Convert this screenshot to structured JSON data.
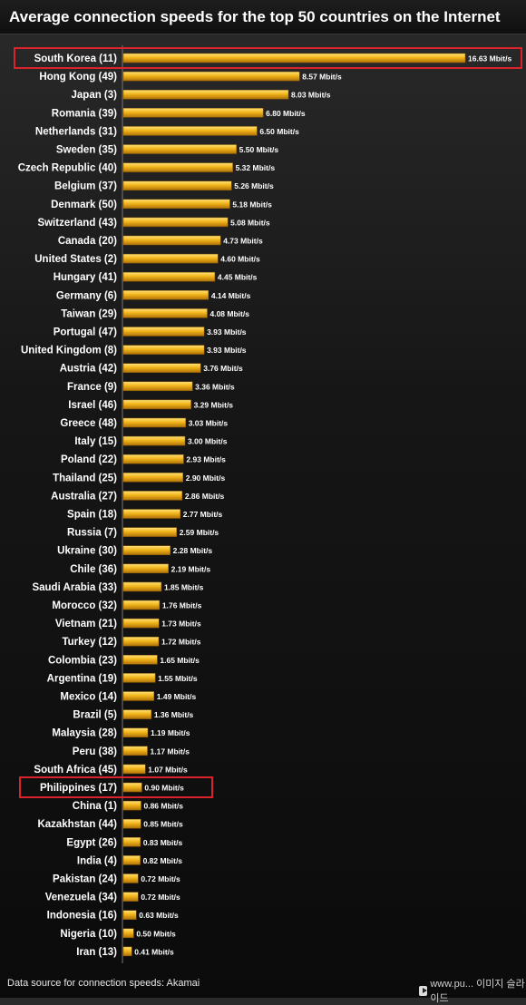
{
  "title": "Average connection speeds for the top 50 countries on the Internet",
  "footer": {
    "source": "Data source for connection speeds: Akamai",
    "watermark": "www.pu... 이미지 슬라이드"
  },
  "colors": {
    "bar_light": "#ffd75a",
    "bar_mid": "#f2b51a",
    "bar_dark": "#b87a08",
    "highlight_box": "#d9232d",
    "background": "#111111"
  },
  "chart_data": {
    "type": "bar",
    "orientation": "horizontal",
    "title": "Average connection speeds for the top 50 countries on the Internet",
    "xlabel": "",
    "ylabel": "",
    "unit": "Mbit/s",
    "xlim": [
      0,
      16.63
    ],
    "grid": false,
    "highlighted": [
      "South Korea (11)",
      "Philippines (17)"
    ],
    "categories": [
      "South Korea (11)",
      "Hong Kong (49)",
      "Japan (3)",
      "Romania (39)",
      "Netherlands (31)",
      "Sweden (35)",
      "Czech Republic (40)",
      "Belgium (37)",
      "Denmark (50)",
      "Switzerland (43)",
      "Canada (20)",
      "United States (2)",
      "Hungary (41)",
      "Germany (6)",
      "Taiwan (29)",
      "Portugal (47)",
      "United Kingdom (8)",
      "Austria (42)",
      "France (9)",
      "Israel (46)",
      "Greece (48)",
      "Italy (15)",
      "Poland (22)",
      "Thailand (25)",
      "Australia (27)",
      "Spain (18)",
      "Russia (7)",
      "Ukraine (30)",
      "Chile (36)",
      "Saudi Arabia (33)",
      "Morocco (32)",
      "Vietnam (21)",
      "Turkey (12)",
      "Colombia (23)",
      "Argentina (19)",
      "Mexico (14)",
      "Brazil (5)",
      "Malaysia (28)",
      "Peru (38)",
      "South Africa (45)",
      "Philippines (17)",
      "China (1)",
      "Kazakhstan (44)",
      "Egypt (26)",
      "India (4)",
      "Pakistan (24)",
      "Venezuela (34)",
      "Indonesia (16)",
      "Nigeria (10)",
      "Iran (13)"
    ],
    "values": [
      16.63,
      8.57,
      8.03,
      6.8,
      6.5,
      5.5,
      5.32,
      5.26,
      5.18,
      5.08,
      4.73,
      4.6,
      4.45,
      4.14,
      4.08,
      3.93,
      3.93,
      3.76,
      3.36,
      3.29,
      3.03,
      3.0,
      2.93,
      2.9,
      2.86,
      2.77,
      2.59,
      2.28,
      2.19,
      1.85,
      1.76,
      1.73,
      1.72,
      1.65,
      1.55,
      1.49,
      1.36,
      1.19,
      1.17,
      1.07,
      0.9,
      0.86,
      0.85,
      0.83,
      0.82,
      0.72,
      0.72,
      0.63,
      0.5,
      0.41
    ],
    "value_labels": [
      "16.63 Mbit/s",
      "8.57 Mbit/s",
      "8.03 Mbit/s",
      "6.80 Mbit/s",
      "6.50 Mbit/s",
      "5.50 Mbit/s",
      "5.32 Mbit/s",
      "5.26 Mbit/s",
      "5.18 Mbit/s",
      "5.08 Mbit/s",
      "4.73 Mbit/s",
      "4.60 Mbit/s",
      "4.45 Mbit/s",
      "4.14 Mbit/s",
      "4.08 Mbit/s",
      "3.93 Mbit/s",
      "3.93 Mbit/s",
      "3.76 Mbit/s",
      "3.36 Mbit/s",
      "3.29 Mbit/s",
      "3.03 Mbit/s",
      "3.00 Mbit/s",
      "2.93 Mbit/s",
      "2.90 Mbit/s",
      "2.86 Mbit/s",
      "2.77 Mbit/s",
      "2.59 Mbit/s",
      "2.28 Mbit/s",
      "2.19 Mbit/s",
      "1.85 Mbit/s",
      "1.76 Mbit/s",
      "1.73 Mbit/s",
      "1.72 Mbit/s",
      "1.65 Mbit/s",
      "1.55 Mbit/s",
      "1.49 Mbit/s",
      "1.36 Mbit/s",
      "1.19 Mbit/s",
      "1.17 Mbit/s",
      "1.07 Mbit/s",
      "0.90 Mbit/s",
      "0.86 Mbit/s",
      "0.85 Mbit/s",
      "0.83 Mbit/s",
      "0.82 Mbit/s",
      "0.72 Mbit/s",
      "0.72 Mbit/s",
      "0.63 Mbit/s",
      "0.50 Mbit/s",
      "0.41 Mbit/s"
    ]
  }
}
